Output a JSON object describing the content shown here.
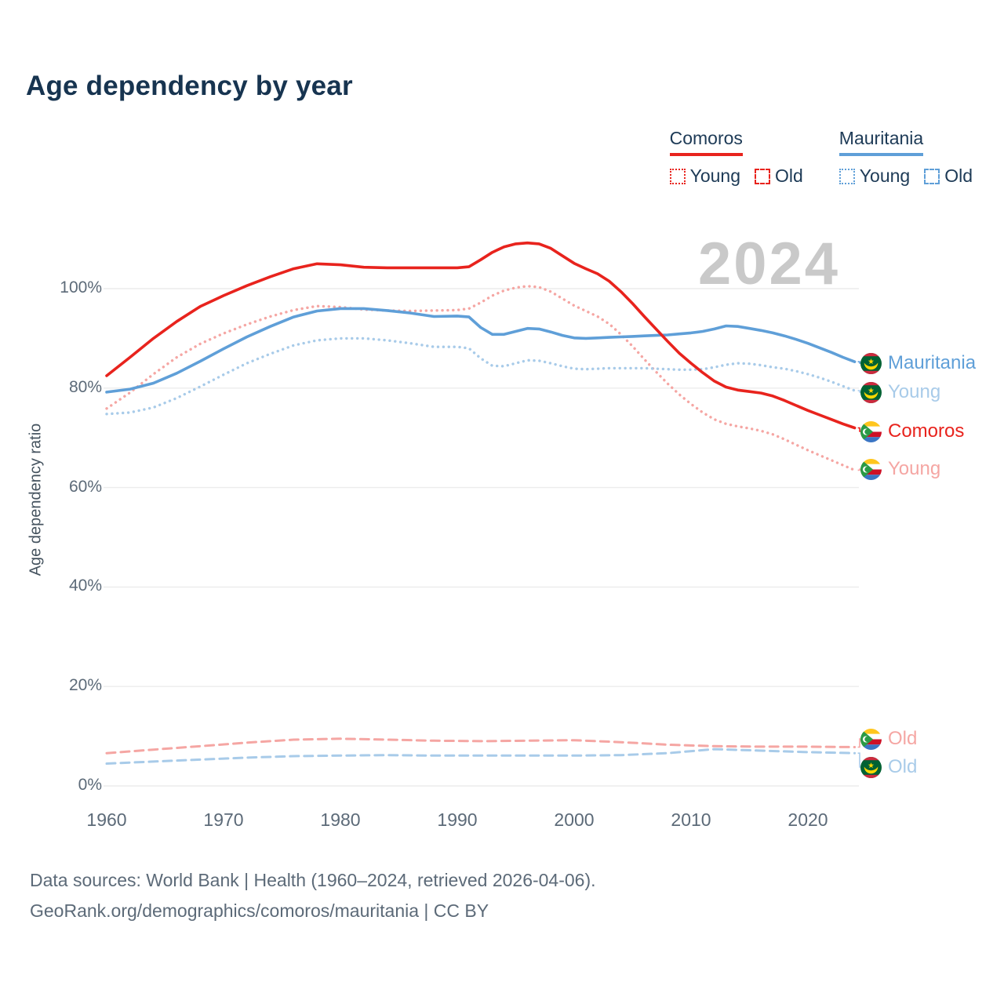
{
  "title": "Age dependency by year",
  "watermark": "2024",
  "legend": {
    "comoros": {
      "label": "Comoros",
      "young": "Young",
      "old": "Old"
    },
    "mauritania": {
      "label": "Mauritania",
      "young": "Young",
      "old": "Old"
    }
  },
  "y_axis": {
    "label": "Age dependency ratio",
    "ticks": [
      "0%",
      "20%",
      "40%",
      "60%",
      "80%",
      "100%"
    ],
    "tick_values": [
      0,
      20,
      40,
      60,
      80,
      100
    ]
  },
  "x_axis": {
    "ticks": [
      "1960",
      "1970",
      "1980",
      "1990",
      "2000",
      "2010",
      "2020"
    ],
    "tick_values": [
      1960,
      1970,
      1980,
      1990,
      2000,
      2010,
      2020
    ]
  },
  "colors": {
    "comoros": "#e8231d",
    "mauritania": "#5f9fd8",
    "comoros_light": "#f5a6a3",
    "mauritania_light": "#a8cbe9",
    "grid": "#ececec",
    "watermark": "#c9c9c9"
  },
  "end_labels": [
    {
      "text": "Mauritania",
      "series": "mauritania_total",
      "color": "#5f9fd8",
      "flag": "mauritania"
    },
    {
      "text": "Young",
      "series": "mauritania_young",
      "color": "#a8cbe9",
      "flag": "mauritania"
    },
    {
      "text": "Comoros",
      "series": "comoros_total",
      "color": "#e8231d",
      "flag": "comoros"
    },
    {
      "text": "Young",
      "series": "comoros_young",
      "color": "#f5a6a3",
      "flag": "comoros"
    },
    {
      "text": "Old",
      "series": "comoros_old",
      "color": "#f5a6a3",
      "flag": "comoros"
    },
    {
      "text": "Old",
      "series": "mauritania_old",
      "color": "#a8cbe9",
      "flag": "mauritania"
    }
  ],
  "footer": {
    "line1": "Data sources: World Bank | Health (1960–2024, retrieved 2026-04-06).",
    "line2": "GeoRank.org/demographics/comoros/mauritania | CC BY"
  },
  "chart_data": {
    "type": "line",
    "title": "Age dependency by year",
    "xlabel": "",
    "ylabel": "Age dependency ratio",
    "xlim": [
      1960,
      2024
    ],
    "ylim": [
      0,
      112
    ],
    "x_ticks": [
      1960,
      1970,
      1980,
      1990,
      2000,
      2010,
      2020
    ],
    "y_ticks": [
      0,
      20,
      40,
      60,
      80,
      100
    ],
    "grid": "horizontal",
    "legend_position": "top-right",
    "watermark": "2024",
    "series": [
      {
        "id": "comoros_old",
        "country": "Comoros",
        "measure": "Old",
        "line_style": "dashed",
        "color": "#f5a6a3",
        "x": [
          1960,
          1964,
          1968,
          1972,
          1976,
          1980,
          1984,
          1988,
          1992,
          1996,
          2000,
          2004,
          2008,
          2012,
          2016,
          2020,
          2024
        ],
        "values": [
          6.6,
          7.3,
          8.0,
          8.7,
          9.3,
          9.5,
          9.3,
          9.1,
          9.0,
          9.1,
          9.2,
          8.8,
          8.3,
          8.0,
          7.9,
          7.9,
          7.8
        ]
      },
      {
        "id": "mauritania_old",
        "country": "Mauritania",
        "measure": "Old",
        "line_style": "dashed",
        "color": "#a8cbe9",
        "x": [
          1960,
          1964,
          1968,
          1972,
          1976,
          1980,
          1984,
          1988,
          1992,
          1996,
          2000,
          2004,
          2008,
          2012,
          2016,
          2020,
          2024
        ],
        "values": [
          4.5,
          4.9,
          5.3,
          5.7,
          6.0,
          6.1,
          6.2,
          6.1,
          6.1,
          6.1,
          6.1,
          6.2,
          6.6,
          7.4,
          7.1,
          6.8,
          6.6
        ]
      },
      {
        "id": "comoros_young",
        "country": "Comoros",
        "measure": "Young",
        "line_style": "dotted",
        "color": "#f5a6a3",
        "x": [
          1960,
          1962,
          1964,
          1966,
          1968,
          1970,
          1972,
          1974,
          1976,
          1978,
          1980,
          1982,
          1984,
          1986,
          1988,
          1990,
          1991,
          1992,
          1993,
          1994,
          1995,
          1996,
          1997,
          1998,
          1999,
          2000,
          2001,
          2002,
          2003,
          2004,
          2005,
          2006,
          2007,
          2008,
          2009,
          2010,
          2011,
          2012,
          2013,
          2014,
          2015,
          2016,
          2017,
          2018,
          2019,
          2020,
          2021,
          2022,
          2023,
          2024
        ],
        "values": [
          75.9,
          79.1,
          82.8,
          86.2,
          88.9,
          91.0,
          92.8,
          94.4,
          95.7,
          96.5,
          96.3,
          95.8,
          95.6,
          95.5,
          95.6,
          95.7,
          96.0,
          97.2,
          98.6,
          99.6,
          100.2,
          100.5,
          100.3,
          99.4,
          98.0,
          96.6,
          95.5,
          94.4,
          92.9,
          90.8,
          88.4,
          85.8,
          83.3,
          80.9,
          78.7,
          76.8,
          75.1,
          73.7,
          72.8,
          72.3,
          71.9,
          71.4,
          70.7,
          69.7,
          68.6,
          67.5,
          66.5,
          65.5,
          64.5,
          63.5
        ]
      },
      {
        "id": "mauritania_young",
        "country": "Mauritania",
        "measure": "Young",
        "line_style": "dotted",
        "color": "#a8cbe9",
        "x": [
          1960,
          1962,
          1964,
          1966,
          1968,
          1970,
          1972,
          1974,
          1976,
          1978,
          1980,
          1982,
          1984,
          1986,
          1988,
          1990,
          1991,
          1992,
          1993,
          1994,
          1995,
          1996,
          1997,
          1998,
          1999,
          2000,
          2001,
          2002,
          2003,
          2004,
          2005,
          2006,
          2007,
          2008,
          2009,
          2010,
          2011,
          2012,
          2013,
          2014,
          2015,
          2016,
          2017,
          2018,
          2019,
          2020,
          2021,
          2022,
          2023,
          2024
        ],
        "values": [
          74.8,
          75.1,
          76.1,
          78.0,
          80.3,
          82.7,
          85.0,
          86.9,
          88.6,
          89.6,
          90.0,
          90.0,
          89.6,
          89.0,
          88.3,
          88.3,
          88.0,
          86.0,
          84.5,
          84.4,
          85.0,
          85.6,
          85.5,
          85.0,
          84.4,
          83.9,
          83.8,
          83.9,
          84.0,
          84.0,
          84.0,
          84.0,
          83.9,
          83.8,
          83.7,
          83.7,
          83.8,
          84.2,
          84.7,
          85.0,
          84.9,
          84.6,
          84.2,
          83.9,
          83.4,
          82.8,
          82.1,
          81.3,
          80.4,
          79.5
        ]
      },
      {
        "id": "mauritania_total",
        "country": "Mauritania",
        "measure": "Total",
        "line_style": "solid",
        "color": "#5f9fd8",
        "x": [
          1960,
          1962,
          1964,
          1966,
          1968,
          1970,
          1972,
          1974,
          1976,
          1978,
          1980,
          1982,
          1984,
          1986,
          1988,
          1990,
          1991,
          1992,
          1993,
          1994,
          1995,
          1996,
          1997,
          1998,
          1999,
          2000,
          2001,
          2002,
          2003,
          2004,
          2005,
          2006,
          2007,
          2008,
          2009,
          2010,
          2011,
          2012,
          2013,
          2014,
          2015,
          2016,
          2017,
          2018,
          2019,
          2020,
          2021,
          2022,
          2023,
          2024
        ],
        "values": [
          79.2,
          79.8,
          81.0,
          83.0,
          85.4,
          87.9,
          90.3,
          92.4,
          94.3,
          95.5,
          96.0,
          96.0,
          95.6,
          95.1,
          94.4,
          94.5,
          94.3,
          92.2,
          90.8,
          90.8,
          91.4,
          92.0,
          91.9,
          91.3,
          90.6,
          90.1,
          90.0,
          90.1,
          90.2,
          90.3,
          90.4,
          90.5,
          90.6,
          90.7,
          90.9,
          91.1,
          91.4,
          91.9,
          92.5,
          92.4,
          92.0,
          91.6,
          91.1,
          90.5,
          89.8,
          89.0,
          88.1,
          87.2,
          86.2,
          85.3
        ]
      },
      {
        "id": "comoros_total",
        "country": "Comoros",
        "measure": "Total",
        "line_style": "solid",
        "color": "#e8231d",
        "x": [
          1960,
          1962,
          1964,
          1966,
          1968,
          1970,
          1972,
          1974,
          1976,
          1978,
          1980,
          1982,
          1984,
          1986,
          1988,
          1990,
          1991,
          1992,
          1993,
          1994,
          1995,
          1996,
          1997,
          1998,
          1999,
          2000,
          2001,
          2002,
          2003,
          2004,
          2005,
          2006,
          2007,
          2008,
          2009,
          2010,
          2011,
          2012,
          2013,
          2014,
          2015,
          2016,
          2017,
          2018,
          2019,
          2020,
          2021,
          2022,
          2023,
          2024
        ],
        "values": [
          82.5,
          86.2,
          90.0,
          93.4,
          96.4,
          98.6,
          100.6,
          102.4,
          104.0,
          105.0,
          104.8,
          104.3,
          104.2,
          104.2,
          104.2,
          104.2,
          104.4,
          105.8,
          107.3,
          108.4,
          109.0,
          109.2,
          109.0,
          108.1,
          106.6,
          105.1,
          104.0,
          103.0,
          101.5,
          99.4,
          97.0,
          94.4,
          91.9,
          89.4,
          87.0,
          85.0,
          83.1,
          81.4,
          80.2,
          79.6,
          79.3,
          79.0,
          78.4,
          77.5,
          76.5,
          75.5,
          74.6,
          73.7,
          72.8,
          72.0
        ]
      }
    ]
  }
}
